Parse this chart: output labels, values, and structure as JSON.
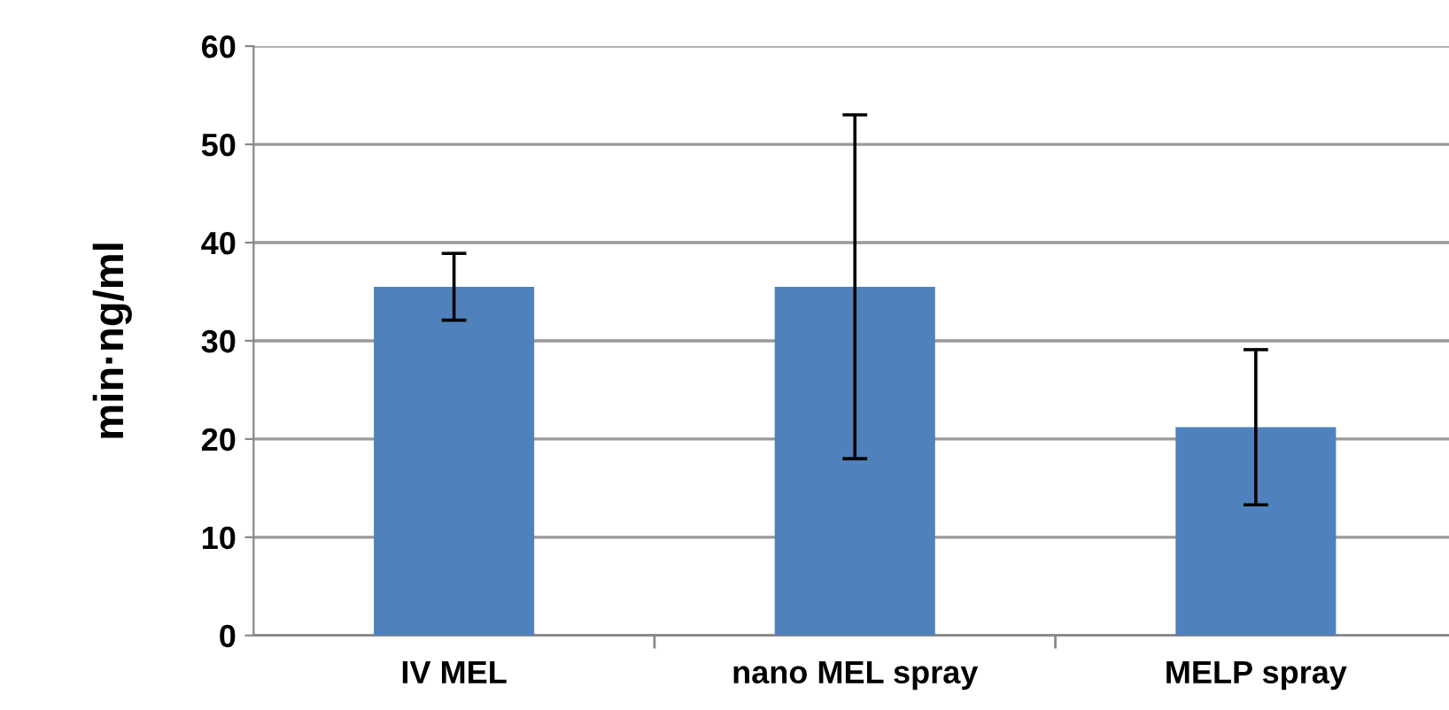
{
  "chart_data": {
    "type": "bar",
    "ylabel": "min·ng/ml",
    "categories": [
      "IV MEL",
      "nano MEL spray",
      "MELP spray"
    ],
    "values": [
      35.5,
      35.5,
      21.2
    ],
    "errors": [
      3.4,
      17.5,
      7.9
    ],
    "color": "#4f81bd",
    "ylim": [
      0,
      60
    ],
    "yticks": [
      0,
      10,
      20,
      30,
      40,
      50,
      60
    ],
    "grid": "y",
    "legend": false
  }
}
